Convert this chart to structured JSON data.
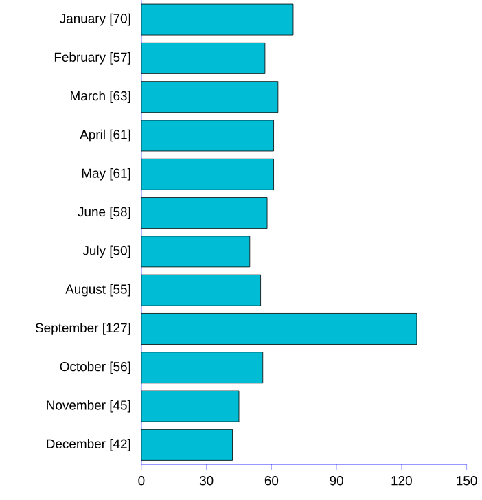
{
  "chart_data": {
    "type": "bar",
    "orientation": "horizontal",
    "categories": [
      "January [70]",
      "February [57]",
      "March [63]",
      "April [61]",
      "May [61]",
      "June [58]",
      "July [50]",
      "August [55]",
      "September [127]",
      "October [56]",
      "November [45]",
      "December [42]"
    ],
    "values": [
      70,
      57,
      63,
      61,
      61,
      58,
      50,
      55,
      127,
      56,
      45,
      42
    ],
    "color": "#00bcd4",
    "xlim": [
      0,
      150
    ],
    "xticks": [
      0,
      30,
      60,
      90,
      120,
      150
    ]
  }
}
